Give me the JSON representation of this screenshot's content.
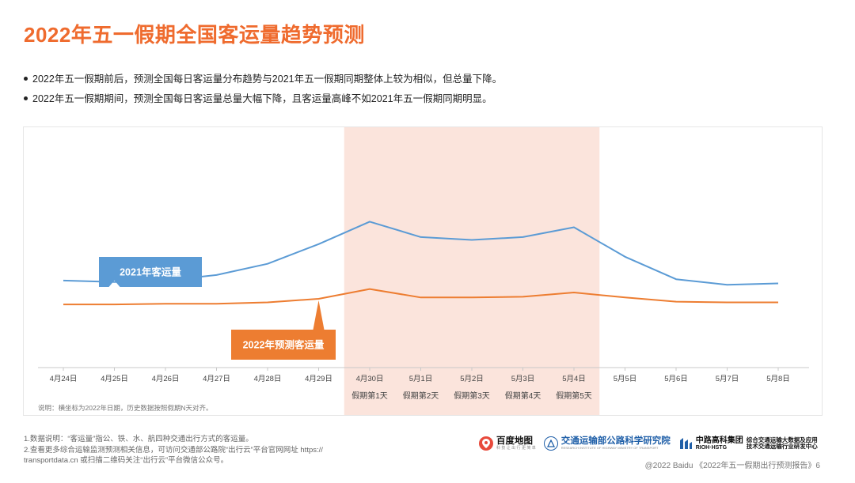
{
  "title": "2022年五一假期全国客运量趋势预测",
  "bullets": [
    "2022年五一假期前后，预测全国每日客运量分布趋势与2021年五一假期同期整体上较为相似，但总量下降。",
    "2022年五一假期期间，预测全国每日客运量总量大幅下降，且客运量高峰不如2021年五一假期同期明显。"
  ],
  "chart_data": {
    "type": "line",
    "categories": [
      "4月24日",
      "4月25日",
      "4月26日",
      "4月27日",
      "4月28日",
      "4月29日",
      "4月30日",
      "5月1日",
      "5月2日",
      "5月3日",
      "5月4日",
      "5月5日",
      "5月6日",
      "5月7日",
      "5月8日"
    ],
    "holiday_labels": [
      "假期第1天",
      "假期第2天",
      "假期第3天",
      "假期第4天",
      "假期第5天"
    ],
    "holiday_range": [
      "4月30日",
      "5月4日"
    ],
    "series": [
      {
        "name": "2021年客运量",
        "values": [
          62,
          61,
          62,
          66,
          74,
          88,
          104,
          93,
          91,
          93,
          100,
          79,
          63,
          59,
          60
        ],
        "color": "#5b9bd5"
      },
      {
        "name": "2022年预测客运量",
        "values": [
          45,
          45,
          45.5,
          45.5,
          46.5,
          49,
          56,
          50,
          50,
          50.5,
          53.5,
          50,
          47,
          46.5,
          46.5
        ],
        "color": "#ed7d31"
      }
    ],
    "ylim": [
      0,
      160
    ],
    "note": "说明：横坐标为2022年日期，历史数据按照假期N天对齐。",
    "highlight_color": "#fbe4dc"
  },
  "footer": {
    "note1": "1.数据说明：“客运量”指公、铁、水、航四种交通出行方式的客运量。",
    "note2": "2.查看更多综合运输监测预测相关信息，可访问交通部公路院“出行云”平台官网网址 https://",
    "note3": "transportdata.cn 或扫描二维码关注“出行云”平台微信公众号。"
  },
  "logos": {
    "baidu": "百度地图",
    "baidu_sub": "科 技 让 出 行 更 简 单",
    "ministry": "交通运输部公路科学研究院",
    "ministry_sub": "RESEARCH INSTITUTE OF HIGHWAY MINISTRY OF TRANSPORT",
    "zhonglu": "中路高科集团",
    "zhonglu_sub": "RIOH·HSTG",
    "center_1": "综合交通运输大数据及应用",
    "center_2": "技术交通运输行业研发中心"
  },
  "copyright": "@2022 Baidu 《2022年五一假期出行预测报告》6"
}
